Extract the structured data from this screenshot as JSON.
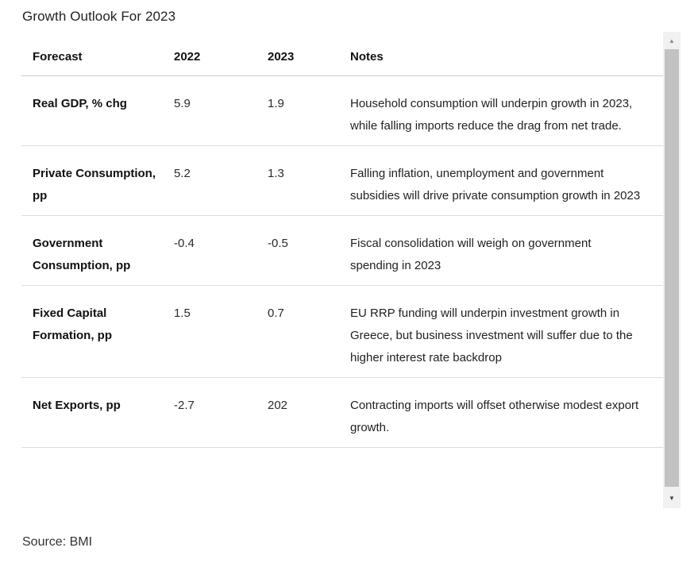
{
  "title": "Growth Outlook For 2023",
  "source": "Source: BMI",
  "scrollbar": {
    "up_icon": "▲",
    "down_icon": "▼"
  },
  "colors": {
    "row_separator": "#dddddd",
    "header_separator": "#cccccc",
    "scrollbar_track": "#f1f1f1",
    "scrollbar_thumb": "#c2c2c2",
    "text": "#1d1d1d"
  },
  "chart_data": {
    "type": "table",
    "title": "Growth Outlook For 2023",
    "source": "Source: BMI",
    "columns": [
      "Forecast",
      "2022",
      "2023",
      "Notes"
    ],
    "rows": [
      [
        "Real GDP, % chg",
        "5.9",
        "1.9",
        "Household consumption will underpin growth in 2023, while falling imports reduce the drag from net trade."
      ],
      [
        "Private Consumption, pp",
        "5.2",
        "1.3",
        "Falling inflation, unemployment and government subsidies will drive private consumption growth in 2023"
      ],
      [
        "Government Consumption, pp",
        "-0.4",
        "-0.5",
        "Fiscal consolidation will weigh on government spending in 2023"
      ],
      [
        "Fixed Capital Formation, pp",
        "1.5",
        "0.7",
        "EU RRP funding will underpin investment growth in Greece, but business investment will suffer due to the higher interest rate backdrop"
      ],
      [
        "Net Exports, pp",
        "-2.7",
        "202",
        "Contracting imports will offset otherwise modest export growth."
      ]
    ]
  }
}
